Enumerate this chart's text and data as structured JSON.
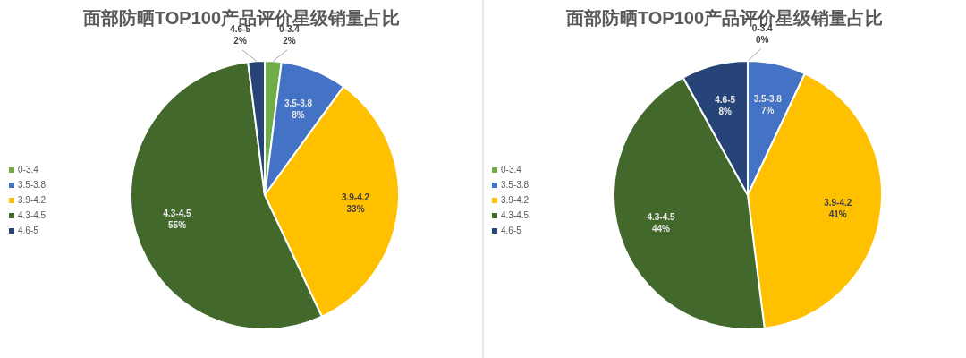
{
  "chart_data": [
    {
      "type": "pie",
      "title": "面部防晒TOP100产品评价星级销量占比",
      "categories": [
        "0-3.4",
        "3.5-3.8",
        "3.9-4.2",
        "4.3-4.5",
        "4.6-5"
      ],
      "values": [
        2,
        8,
        33,
        55,
        2
      ],
      "value_labels": [
        "2%",
        "8%",
        "33%",
        "55%",
        "2%"
      ],
      "colors": [
        "#70ad47",
        "#4472c4",
        "#ffc000",
        "#43682b",
        "#264478"
      ],
      "legend": "left"
    },
    {
      "type": "pie",
      "title": "面部防晒TOP100产品评价星级销量占比",
      "categories": [
        "0-3.4",
        "3.5-3.8",
        "3.9-4.2",
        "4.3-4.5",
        "4.6-5"
      ],
      "values": [
        0,
        7,
        41,
        44,
        8
      ],
      "value_labels": [
        "0%",
        "7%",
        "41%",
        "44%",
        "8%"
      ],
      "colors": [
        "#70ad47",
        "#4472c4",
        "#ffc000",
        "#43682b",
        "#264478"
      ],
      "legend": "left"
    }
  ]
}
